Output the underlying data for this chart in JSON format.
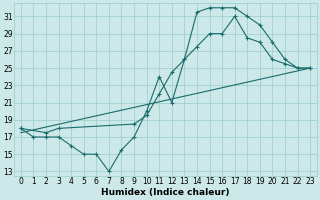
{
  "xlabel": "Humidex (Indice chaleur)",
  "bg_color": "#cce8e8",
  "grid_color": "#99cccc",
  "line_color": "#1a6b6b",
  "xlim": [
    -0.5,
    23.5
  ],
  "ylim": [
    12.5,
    32.5
  ],
  "yticks": [
    13,
    15,
    17,
    19,
    21,
    23,
    25,
    27,
    29,
    31
  ],
  "xticks": [
    0,
    1,
    2,
    3,
    4,
    5,
    6,
    7,
    8,
    9,
    10,
    11,
    12,
    13,
    14,
    15,
    16,
    17,
    18,
    19,
    20,
    21,
    22,
    23
  ],
  "series": [
    {
      "x": [
        0,
        1,
        2,
        3,
        4,
        5,
        6,
        7,
        8,
        9,
        10,
        11,
        12,
        13,
        14,
        15,
        16,
        17,
        18,
        19,
        20,
        21,
        22,
        23
      ],
      "y": [
        18,
        17,
        17,
        17,
        16,
        15,
        15,
        13,
        15.5,
        17,
        20,
        24,
        21,
        26,
        31.5,
        32,
        32,
        32,
        31,
        30,
        28,
        26,
        25,
        25
      ]
    },
    {
      "x": [
        0,
        2,
        3,
        9,
        10,
        11,
        12,
        13,
        14,
        15,
        16,
        17,
        18,
        19,
        20,
        21,
        22,
        23
      ],
      "y": [
        18,
        17.5,
        18,
        18.5,
        19.5,
        22,
        24.5,
        26,
        27.5,
        29,
        29,
        31,
        28.5,
        28,
        26,
        25.5,
        25,
        25
      ]
    },
    {
      "x": [
        0,
        23
      ],
      "y": [
        17.5,
        25
      ]
    }
  ]
}
